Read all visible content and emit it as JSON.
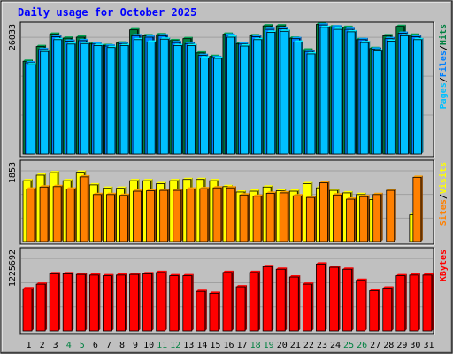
{
  "title": "Daily usage for October 2025",
  "colors": {
    "background": "#c0c0c0",
    "title": "#0000ff",
    "hits": "#008040",
    "files": "#0080ff",
    "pages": "#00c0ff",
    "visits": "#ffff00",
    "sites": "#ff8000",
    "kbytes": "#ff0000",
    "weekend_day": "#008040",
    "weekday": "#000000"
  },
  "chart_data": {
    "type": "bar",
    "title": "Daily usage for October 2025",
    "categories": [
      "1",
      "2",
      "3",
      "4",
      "5",
      "6",
      "7",
      "8",
      "9",
      "10",
      "11",
      "12",
      "13",
      "14",
      "15",
      "16",
      "17",
      "18",
      "19",
      "20",
      "21",
      "22",
      "23",
      "24",
      "25",
      "26",
      "27",
      "28",
      "29",
      "30",
      "31"
    ],
    "weekend_days": [
      "4",
      "5",
      "11",
      "12",
      "18",
      "19",
      "25",
      "26"
    ],
    "panels": [
      {
        "id": "top",
        "ymax_label": "26033",
        "ylim": [
          0,
          26033
        ],
        "legend": [
          "Pages",
          "/",
          "Files",
          "/",
          "Hits"
        ],
        "legend_colors": [
          "#00c0ff",
          "#000000",
          "#0080ff",
          "#000000",
          "#008040"
        ],
        "series": [
          {
            "name": "Hits",
            "color": "#008040",
            "values": [
              18800,
              21800,
              24300,
              23500,
              23700,
              22400,
              22000,
              22500,
              25200,
              24000,
              24200,
              23000,
              23400,
              20500,
              19800,
              24300,
              22400,
              24000,
              26000,
              26000,
              23500,
              21100,
              26300,
              25800,
              25700,
              23200,
              21400,
              24000,
              25900,
              24100,
              0
            ]
          },
          {
            "name": "Files",
            "color": "#0080ff",
            "values": [
              18500,
              21200,
              23800,
              22900,
              23000,
              22300,
              21900,
              22400,
              24000,
              23700,
              24000,
              22600,
              22400,
              20000,
              19600,
              24100,
              22300,
              23800,
              25300,
              25400,
              23400,
              20800,
              26200,
              25800,
              25300,
              23200,
              21300,
              23400,
              24500,
              23800,
              0
            ]
          },
          {
            "name": "Pages",
            "color": "#00c0ff",
            "values": [
              18100,
              20800,
              23200,
              22300,
              22400,
              22000,
              21600,
              22000,
              23200,
              22700,
              23300,
              22000,
              22000,
              19500,
              19400,
              23700,
              21900,
              23200,
              24700,
              24900,
              22700,
              20300,
              25700,
              25300,
              24800,
              22600,
              20900,
              22900,
              24000,
              23200,
              0
            ]
          }
        ]
      },
      {
        "id": "middle",
        "ymax_label": "1853",
        "ylim": [
          0,
          1853
        ],
        "legend": [
          "Sites",
          "/",
          "Visits"
        ],
        "legend_colors": [
          "#ff8000",
          "#000000",
          "#ffff00"
        ],
        "series": [
          {
            "name": "Visits",
            "color": "#ffff00",
            "values": [
              1450,
              1580,
              1640,
              1450,
              1650,
              1350,
              1270,
              1270,
              1450,
              1450,
              1380,
              1450,
              1480,
              1480,
              1450,
              1310,
              1180,
              1200,
              1300,
              1210,
              1200,
              1380,
              1280,
              1220,
              1160,
              1120,
              1000,
              0,
              0,
              640,
              0
            ]
          },
          {
            "name": "Sites",
            "color": "#ff8000",
            "values": [
              1250,
              1300,
              1310,
              1250,
              1540,
              1120,
              1120,
              1100,
              1200,
              1210,
              1220,
              1220,
              1250,
              1260,
              1280,
              1280,
              1110,
              1080,
              1150,
              1160,
              1090,
              1050,
              1400,
              1110,
              1010,
              1070,
              1120,
              1220,
              0,
              1530,
              0
            ]
          }
        ]
      },
      {
        "id": "bottom",
        "ymax_label": "1225692",
        "ylim": [
          0,
          1225692
        ],
        "legend": [
          "KBytes"
        ],
        "legend_colors": [
          "#ff0000"
        ],
        "series": [
          {
            "name": "KBytes",
            "color": "#ff0000",
            "values": [
              650000,
              720000,
              880000,
              880000,
              870000,
              860000,
              850000,
              860000,
              870000,
              880000,
              900000,
              850000,
              850000,
              610000,
              580000,
              900000,
              680000,
              900000,
              990000,
              950000,
              830000,
              720000,
              1030000,
              980000,
              950000,
              780000,
              620000,
              660000,
              850000,
              860000,
              860000
            ]
          }
        ]
      }
    ]
  }
}
